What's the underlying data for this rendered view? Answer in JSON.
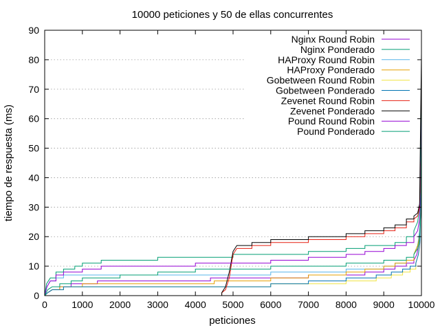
{
  "chart_data": {
    "type": "line",
    "title": "10000 peticiones y 50 de ellas concurrentes",
    "xlabel": "peticiones",
    "ylabel": "tiempo de respuesta (ms)",
    "xlim": [
      0,
      10000
    ],
    "ylim": [
      0,
      90
    ],
    "x_ticks": [
      0,
      1000,
      2000,
      3000,
      4000,
      5000,
      6000,
      7000,
      8000,
      9000,
      10000
    ],
    "y_ticks": [
      0,
      10,
      20,
      30,
      40,
      50,
      60,
      70,
      80,
      90
    ],
    "grid": "horizontal dotted",
    "legend_position": "top-right",
    "series": [
      {
        "name": "Nginx Round Robin",
        "color": "#9400d3",
        "x": [
          0,
          80,
          200,
          400,
          700,
          1000,
          1200,
          1400,
          2000,
          2500,
          3000,
          3500,
          4000,
          4200,
          4400,
          4700,
          5000,
          6000,
          7000,
          8000,
          8500,
          9000,
          9300,
          9600,
          9800,
          9880,
          9920,
          9950,
          9980,
          10000
        ],
        "y": [
          0,
          1,
          2,
          3,
          4,
          4,
          4,
          5,
          5,
          5,
          5,
          5,
          5,
          5,
          6,
          6,
          6,
          6,
          7,
          7,
          8,
          9,
          10,
          11,
          12,
          14,
          17,
          22,
          30,
          65
        ]
      },
      {
        "name": "Nginx Ponderado",
        "color": "#009e73",
        "x": [
          0,
          50,
          150,
          300,
          500,
          800,
          1000,
          1500,
          2000,
          3000,
          4000,
          5000,
          6000,
          7000,
          8000,
          8500,
          9000,
          9300,
          9600,
          9800,
          9900,
          9950,
          9980,
          10000
        ],
        "y": [
          0,
          4,
          6,
          8,
          9,
          10,
          11,
          12,
          12,
          13,
          13,
          14,
          14,
          15,
          16,
          17,
          17,
          18,
          20,
          22,
          25,
          30,
          45,
          75
        ]
      },
      {
        "name": "HAProxy Round Robin",
        "color": "#56b4e9",
        "x": [
          0,
          60,
          150,
          300,
          500,
          1000,
          2000,
          3000,
          4000,
          5000,
          6000,
          7000,
          8000,
          8500,
          9000,
          9300,
          9600,
          9800,
          9900,
          9950,
          9980,
          10000
        ],
        "y": [
          0,
          3,
          5,
          6,
          7,
          7,
          7,
          7,
          7,
          7,
          8,
          8,
          9,
          9,
          10,
          11,
          12,
          14,
          17,
          22,
          35,
          62
        ]
      },
      {
        "name": "HAProxy Ponderado",
        "color": "#e69f00",
        "x": [
          0,
          80,
          200,
          400,
          1000,
          2000,
          3000,
          4000,
          4500,
          5000,
          6000,
          7000,
          8000,
          8500,
          9000,
          9300,
          9600,
          9800,
          9900,
          9950,
          9980,
          10000
        ],
        "y": [
          0,
          1,
          2,
          3,
          4,
          4,
          4,
          4,
          5,
          5,
          6,
          7,
          8,
          9,
          10,
          11,
          12,
          14,
          17,
          20,
          28,
          55
        ]
      },
      {
        "name": "Gobetween Round Robin",
        "color": "#f0e442",
        "x": [
          0,
          80,
          200,
          500,
          1000,
          2000,
          3000,
          4000,
          5000,
          6000,
          7000,
          8000,
          8800,
          9200,
          9500,
          9700,
          9850,
          9920,
          9960,
          10000
        ],
        "y": [
          0,
          1,
          2,
          3,
          3,
          3,
          3,
          3,
          3,
          4,
          4,
          5,
          6,
          7,
          8,
          9,
          11,
          14,
          20,
          45
        ]
      },
      {
        "name": "Gobetween Ponderado",
        "color": "#0072b2",
        "x": [
          0,
          80,
          200,
          500,
          1000,
          2000,
          3000,
          4000,
          5000,
          6000,
          7000,
          8000,
          8800,
          9200,
          9500,
          9700,
          9850,
          9920,
          9960,
          10000
        ],
        "y": [
          0,
          1,
          2,
          3,
          3,
          3,
          3,
          3,
          3,
          4,
          5,
          6,
          7,
          8,
          9,
          10,
          11,
          14,
          18,
          40
        ]
      },
      {
        "name": "Zevenet Round Robin",
        "color": "#e51e10",
        "x": [
          0,
          500,
          1000,
          2000,
          3000,
          4000,
          4500,
          4700,
          4800,
          4900,
          5000,
          5100,
          5200,
          5500,
          6000,
          7000,
          8000,
          8500,
          9000,
          9300,
          9600,
          9800,
          9900,
          9950,
          10000
        ],
        "y": [
          0,
          0,
          0,
          0,
          0,
          0,
          0,
          1,
          2,
          6,
          14,
          16,
          16,
          17,
          18,
          19,
          20,
          21,
          22,
          23,
          25,
          26,
          27,
          30,
          50
        ]
      },
      {
        "name": "Zevenet Ponderado",
        "color": "#000000",
        "x": [
          0,
          500,
          1000,
          2000,
          3000,
          4000,
          4500,
          4700,
          4800,
          4900,
          5000,
          5100,
          5200,
          5500,
          6000,
          7000,
          8000,
          8500,
          9000,
          9300,
          9600,
          9800,
          9900,
          9950,
          10000
        ],
        "y": [
          0,
          0,
          0,
          0,
          0,
          0,
          0,
          1,
          3,
          8,
          15,
          17,
          17,
          18,
          19,
          20,
          21,
          22,
          23,
          24,
          26,
          27,
          28,
          31,
          82
        ]
      },
      {
        "name": "Pound Round Robin",
        "color": "#9400d3",
        "x": [
          0,
          60,
          150,
          300,
          500,
          1000,
          1500,
          2000,
          3000,
          4000,
          5000,
          6000,
          7000,
          8000,
          8500,
          9000,
          9300,
          9600,
          9800,
          9900,
          9950,
          9980,
          10000
        ],
        "y": [
          0,
          3,
          5,
          7,
          8,
          9,
          10,
          10,
          10,
          11,
          11,
          12,
          13,
          14,
          15,
          16,
          17,
          18,
          20,
          22,
          26,
          35,
          60
        ]
      },
      {
        "name": "Pound Ponderado",
        "color": "#009e73",
        "x": [
          0,
          80,
          200,
          400,
          700,
          1000,
          2000,
          3000,
          4000,
          5000,
          6000,
          7000,
          8000,
          8500,
          9000,
          9300,
          9600,
          9800,
          9900,
          9950,
          9980,
          10000
        ],
        "y": [
          0,
          2,
          3,
          4,
          5,
          6,
          7,
          8,
          9,
          9,
          10,
          10,
          11,
          11,
          12,
          12,
          13,
          14,
          16,
          19,
          28,
          58
        ]
      }
    ]
  }
}
